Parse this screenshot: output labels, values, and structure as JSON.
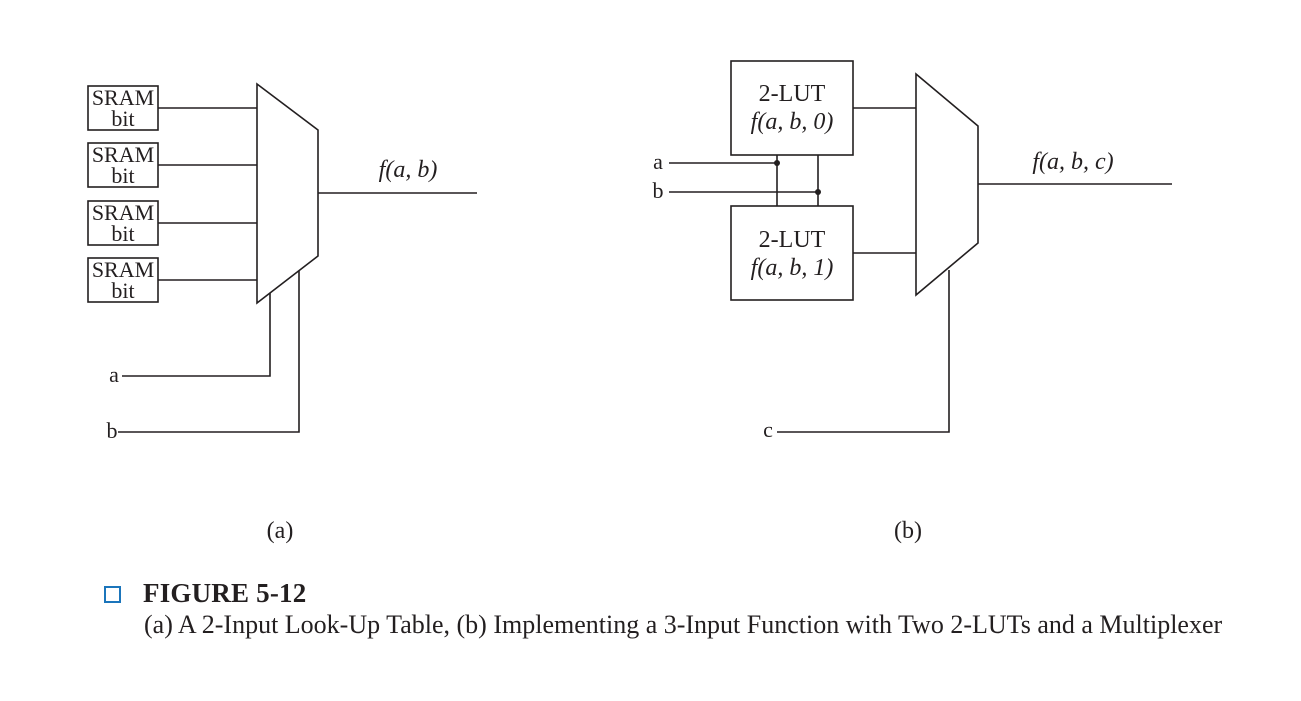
{
  "panel_a": {
    "sram_label_top": "SRAM",
    "sram_label_bottom": "bit",
    "output_label": "f(a, b)",
    "input_a": "a",
    "input_b": "b",
    "panel_label": "(a)"
  },
  "panel_b": {
    "lut0_title": "2-LUT",
    "lut0_function": "f(a, b, 0)",
    "lut1_title": "2-LUT",
    "lut1_function": "f(a, b, 1)",
    "input_a": "a",
    "input_b": "b",
    "input_c": "c",
    "output_label": "f(a, b, c)",
    "panel_label": "(b)"
  },
  "caption": {
    "title": "FIGURE 5-12",
    "text": "(a) A 2-Input Look-Up Table, (b) Implementing a 3-Input Function with Two 2-LUTs and a Multiplexer",
    "box_color": "#1b75bb"
  }
}
